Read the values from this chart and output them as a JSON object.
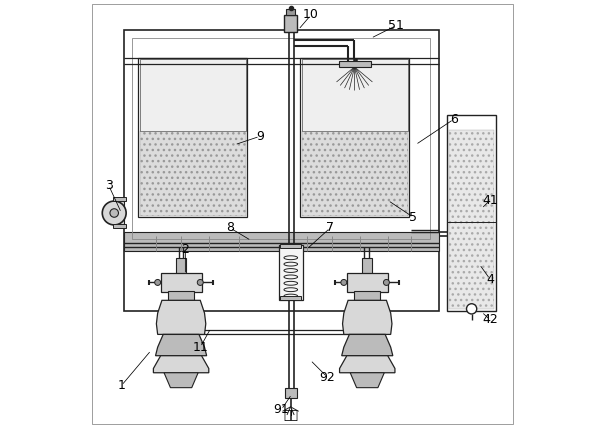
{
  "bg_color": "#ffffff",
  "lc": "#444444",
  "dc": "#222222",
  "gc": "#888888",
  "fc_light": "#d8d8d8",
  "fc_mid": "#bbbbbb",
  "fc_dark": "#999999",
  "hatch_fc": "#e5e5e5",
  "label_data": {
    "1": [
      0.075,
      0.095,
      0.145,
      0.178
    ],
    "2": [
      0.225,
      0.415,
      0.225,
      0.355
    ],
    "3": [
      0.045,
      0.565,
      0.075,
      0.5
    ],
    "4": [
      0.94,
      0.345,
      0.915,
      0.38
    ],
    "41": [
      0.94,
      0.53,
      0.92,
      0.51
    ],
    "42": [
      0.94,
      0.25,
      0.92,
      0.268
    ],
    "5": [
      0.76,
      0.49,
      0.7,
      0.53
    ],
    "51": [
      0.72,
      0.94,
      0.66,
      0.91
    ],
    "6": [
      0.855,
      0.72,
      0.765,
      0.66
    ],
    "7": [
      0.565,
      0.465,
      0.51,
      0.415
    ],
    "8": [
      0.33,
      0.465,
      0.38,
      0.435
    ],
    "9": [
      0.4,
      0.68,
      0.34,
      0.66
    ],
    "10": [
      0.52,
      0.965,
      0.49,
      0.93
    ],
    "11": [
      0.26,
      0.185,
      0.285,
      0.23
    ],
    "91": [
      0.45,
      0.038,
      0.475,
      0.075
    ],
    "92": [
      0.558,
      0.115,
      0.518,
      0.155
    ]
  }
}
